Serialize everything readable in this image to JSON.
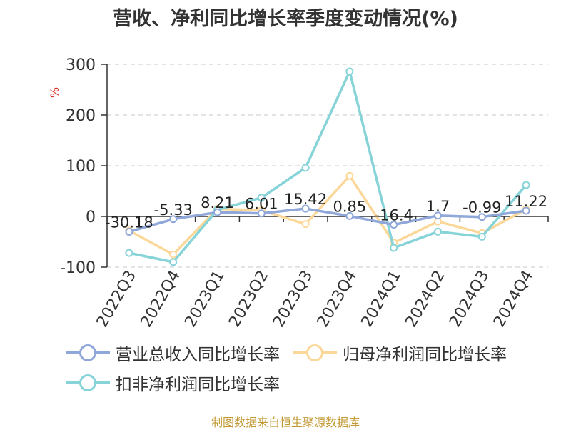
{
  "title": "营收、净利同比增长率季度变动情况(%)",
  "source": "制图数据来自恒生聚源数据库",
  "chart_data": {
    "type": "line",
    "unit": "%",
    "categories": [
      "2022Q3",
      "2022Q4",
      "2023Q1",
      "2023Q2",
      "2023Q3",
      "2023Q4",
      "2024Q1",
      "2024Q2",
      "2024Q3",
      "2024Q4"
    ],
    "yticks": [
      300,
      200,
      100,
      0,
      -100
    ],
    "ylim": [
      -100,
      300
    ],
    "grid": true,
    "legend_position": "bottom",
    "series": [
      {
        "name": "营业总收入同比增长率",
        "color": "#8fa7d9",
        "values": [
          -30.18,
          -5.33,
          8.21,
          6.01,
          15.42,
          0.85,
          -16.4,
          1.7,
          -0.99,
          11.22
        ],
        "labels": [
          "-30.18",
          "-5.33",
          "8.21",
          "6.01",
          "15.42",
          "0.85",
          "-16.4",
          "1.7",
          "-0.99",
          "11.22"
        ]
      },
      {
        "name": "归母净利润同比增长率",
        "color": "#fbd89a",
        "values": [
          -28,
          -75,
          15,
          12,
          -15,
          80,
          -52,
          -10,
          -33,
          14
        ]
      },
      {
        "name": "扣非净利润同比增长率",
        "color": "#86d3d8",
        "values": [
          -72,
          -90,
          13,
          37,
          96,
          286,
          -62,
          -30,
          -40,
          62
        ]
      }
    ]
  }
}
